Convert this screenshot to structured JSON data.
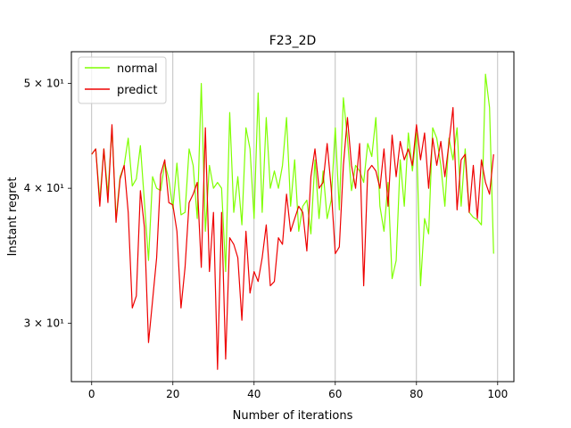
{
  "chart_data": {
    "type": "line",
    "title": "F23_2D",
    "xlabel": "Number of iterations",
    "ylabel": "Instant regret",
    "xlim": [
      -5,
      104
    ],
    "ylim": [
      26.5,
      53.5
    ],
    "yscale": "log",
    "x_ticks": [
      0,
      20,
      40,
      60,
      80,
      100
    ],
    "x_tick_labels": [
      "0",
      "20",
      "40",
      "60",
      "80",
      "100"
    ],
    "y_ticks": [
      30,
      40,
      50
    ],
    "y_tick_labels": [
      "3 × 10¹",
      "4 × 10¹",
      "5 × 10¹"
    ],
    "grid": "x-only",
    "legend_position": "top-left",
    "series": [
      {
        "name": "normal",
        "color": "#7fff00",
        "values": [
          43.0,
          43.5,
          39.0,
          43.5,
          39.5,
          45.5,
          37.5,
          41.0,
          42.0,
          44.5,
          40.2,
          40.8,
          43.8,
          38.8,
          34.3,
          41.0,
          40.0,
          39.8,
          42.2,
          40.8,
          38.3,
          42.2,
          37.8,
          38.0,
          43.5,
          42.0,
          37.5,
          50.0,
          36.5,
          42.0,
          40.0,
          40.5,
          40.0,
          33.5,
          47.0,
          38.0,
          41.0,
          37.0,
          45.5,
          43.5,
          37.5,
          49.0,
          38.0,
          46.5,
          40.0,
          41.5,
          40.0,
          42.0,
          46.5,
          38.5,
          42.5,
          36.5,
          38.5,
          39.0,
          36.3,
          42.5,
          37.5,
          41.5,
          37.5,
          39.0,
          45.5,
          38.2,
          48.5,
          44.5,
          39.8,
          42.0,
          41.5,
          40.5,
          44.0,
          42.8,
          46.5,
          38.5,
          36.5,
          40.5,
          33.0,
          34.3,
          42.5,
          38.5,
          45.0,
          41.5,
          45.0,
          32.5,
          37.5,
          36.3,
          45.5,
          44.5,
          42.0,
          38.5,
          44.5,
          42.5,
          45.5,
          38.5,
          43.5,
          38.0,
          37.6,
          37.4,
          37.0,
          51.0,
          47.5,
          34.8
        ]
      },
      {
        "name": "predict",
        "color": "#ee0000",
        "values": [
          43.0,
          43.5,
          38.5,
          43.5,
          38.8,
          45.8,
          37.2,
          40.8,
          42.0,
          38.0,
          31.0,
          31.8,
          39.8,
          36.8,
          28.8,
          31.5,
          34.5,
          41.2,
          42.5,
          38.8,
          38.6,
          36.5,
          31.0,
          33.8,
          38.8,
          39.5,
          40.5,
          33.8,
          45.5,
          33.5,
          38.0,
          27.2,
          38.0,
          27.8,
          36.0,
          35.5,
          34.5,
          30.2,
          36.5,
          32.0,
          33.5,
          32.8,
          34.5,
          37.0,
          32.5,
          32.8,
          36.0,
          35.5,
          39.5,
          36.5,
          37.5,
          38.5,
          38.0,
          35.0,
          41.0,
          43.5,
          40.0,
          40.5,
          44.0,
          40.0,
          34.8,
          35.3,
          42.0,
          46.5,
          42.0,
          40.0,
          44.0,
          32.5,
          41.5,
          42.0,
          41.5,
          40.0,
          43.5,
          38.5,
          44.8,
          41.0,
          44.2,
          42.5,
          43.5,
          42.0,
          45.8,
          42.5,
          45.0,
          40.0,
          44.5,
          42.0,
          44.2,
          41.0,
          44.0,
          47.5,
          38.2,
          42.5,
          43.0,
          38.0,
          42.0,
          37.5,
          42.5,
          40.5,
          39.5,
          43.0
        ]
      }
    ]
  }
}
